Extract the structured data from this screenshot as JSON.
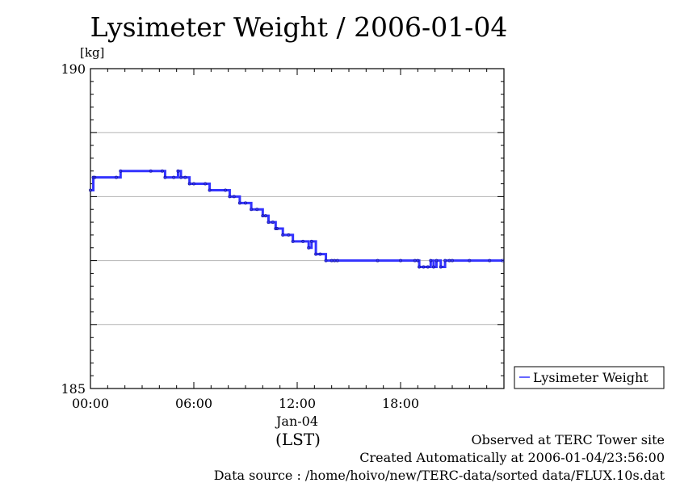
{
  "chart_data": {
    "type": "line",
    "title": "Lysimeter Weight / 2006-01-04",
    "ylabel": "[kg]",
    "xlabel": "(LST)",
    "x_date_label": "Jan-04",
    "ylim": [
      185,
      190
    ],
    "ytick_labels": [
      "190",
      "185"
    ],
    "xlim": [
      "00:00",
      "24:00"
    ],
    "xtick_labels": [
      "00:00",
      "06:00",
      "12:00",
      "18:00"
    ],
    "grid": true,
    "legend_position": "right",
    "series": [
      {
        "name": "Lysimeter Weight",
        "color": "#3333ff",
        "x": [
          "00:00",
          "00:10",
          "00:15",
          "01:30",
          "01:45",
          "03:30",
          "04:10",
          "04:20",
          "04:50",
          "05:05",
          "05:15",
          "05:30",
          "05:45",
          "06:00",
          "06:40",
          "06:55",
          "07:50",
          "08:05",
          "08:20",
          "08:40",
          "09:00",
          "09:20",
          "09:40",
          "10:00",
          "10:10",
          "10:20",
          "10:35",
          "10:45",
          "10:50",
          "11:10",
          "11:30",
          "11:45",
          "12:20",
          "12:40",
          "12:50",
          "13:05",
          "13:20",
          "13:40",
          "14:00",
          "14:10",
          "14:20",
          "16:40",
          "18:00",
          "18:50",
          "19:00",
          "19:05",
          "19:20",
          "19:35",
          "19:45",
          "19:55",
          "20:05",
          "20:20",
          "20:35",
          "20:50",
          "21:00",
          "22:00",
          "23:10",
          "23:55"
        ],
        "values": [
          188.1,
          188.3,
          188.3,
          188.3,
          188.4,
          188.4,
          188.4,
          188.3,
          188.3,
          188.4,
          188.3,
          188.3,
          188.2,
          188.2,
          188.2,
          188.1,
          188.1,
          188.0,
          188.0,
          187.9,
          187.9,
          187.8,
          187.8,
          187.7,
          187.7,
          187.6,
          187.6,
          187.5,
          187.5,
          187.4,
          187.4,
          187.3,
          187.3,
          187.2,
          187.3,
          187.1,
          187.1,
          187.0,
          187.0,
          187.0,
          187.0,
          187.0,
          187.0,
          187.0,
          187.0,
          186.9,
          186.9,
          186.9,
          187.0,
          186.9,
          187.0,
          186.9,
          187.0,
          187.0,
          187.0,
          187.0,
          187.0,
          187.0
        ]
      }
    ]
  },
  "notes": {
    "site": "Observed at TERC Tower site",
    "created": "Created Automatically at 2006-01-04/23:56:00",
    "source": "Data source : /home/hoivo/new/TERC-data/sorted  data/FLUX.10s.dat"
  }
}
